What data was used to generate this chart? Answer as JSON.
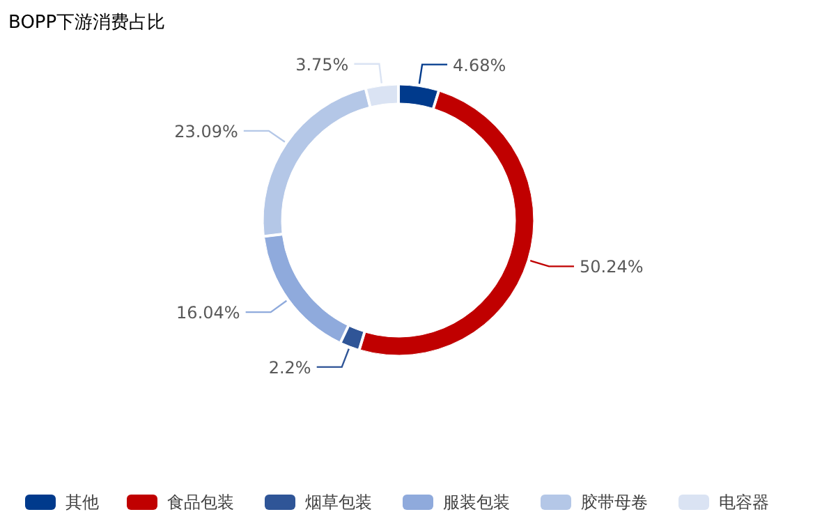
{
  "chart_data": {
    "type": "donut",
    "title": "BOPP下游消费占比",
    "categories": [
      "其他",
      "食品包装",
      "烟草包装",
      "服装包装",
      "胶带母卷",
      "电容器"
    ],
    "values": [
      4.68,
      50.24,
      2.2,
      16.04,
      23.09,
      3.75
    ],
    "colors": [
      "#003a8c",
      "#c00000",
      "#2f5597",
      "#8faadc",
      "#b4c7e7",
      "#dae3f3"
    ],
    "value_labels": [
      "4.68%",
      "50.24%",
      "2.2%",
      "16.04%",
      "23.09%",
      "3.75%"
    ],
    "legend": "bottom left"
  }
}
